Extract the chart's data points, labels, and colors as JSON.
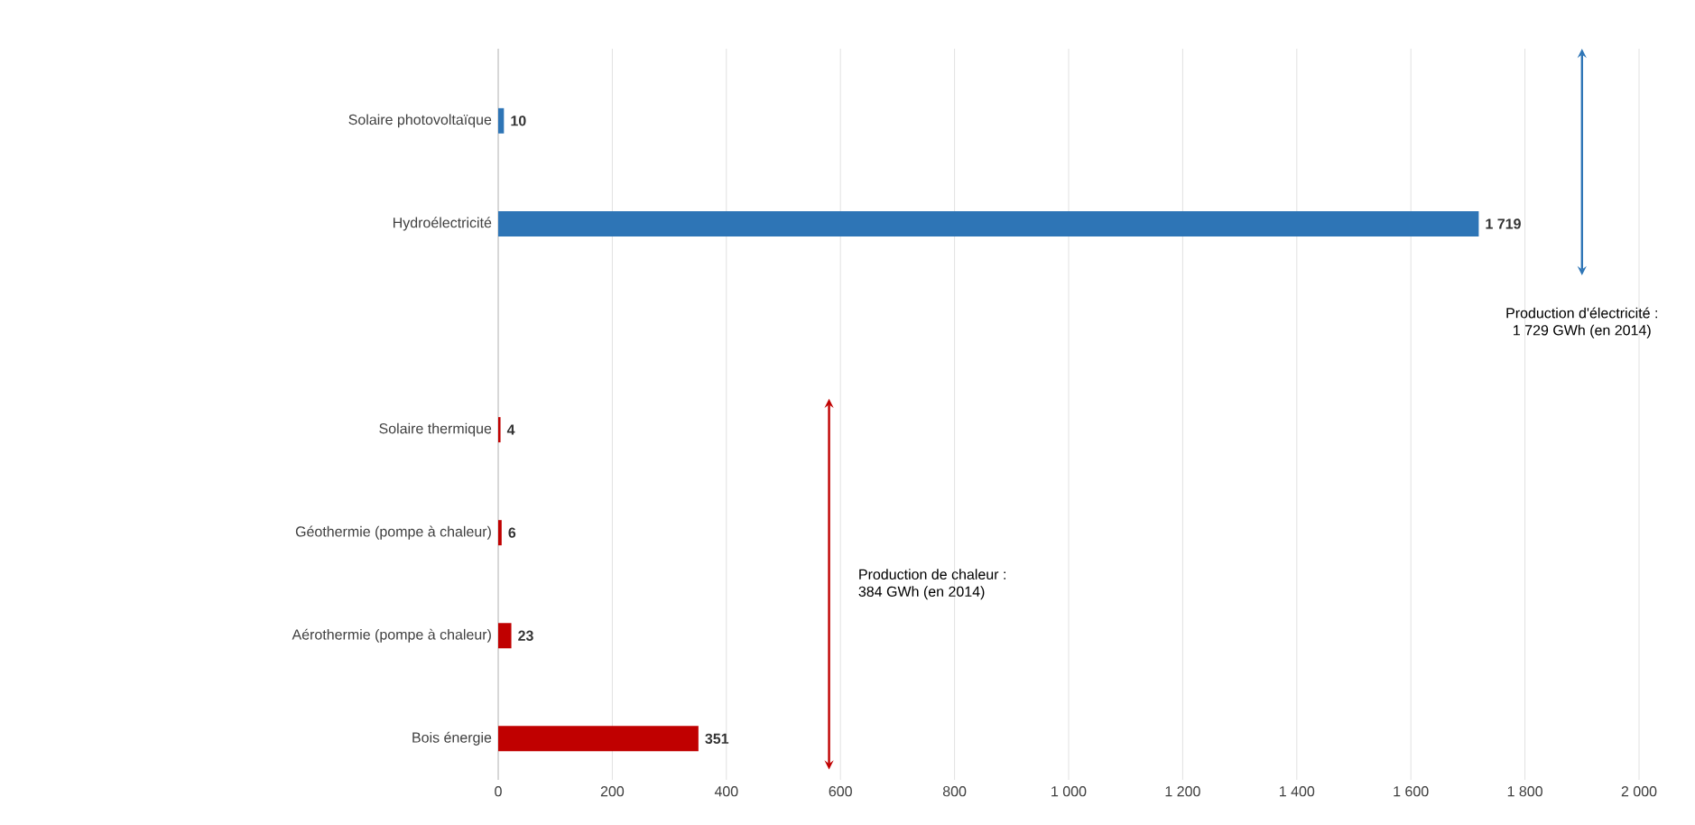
{
  "chart_data": {
    "type": "bar",
    "orientation": "horizontal",
    "categories": [
      "Solaire photovoltaïque",
      "Hydroélectricité",
      null,
      "Solaire thermique",
      "Géothermie (pompe à chaleur)",
      "Aérothermie (pompe à chaleur)",
      "Bois énergie"
    ],
    "values": [
      10,
      1719,
      null,
      4,
      6,
      23,
      351
    ],
    "colors": [
      "#2e75b6",
      "#2e75b6",
      "#2e75b6",
      "#c00000",
      "#c00000",
      "#c00000",
      "#c00000"
    ],
    "value_labels": [
      "10",
      "1 719",
      null,
      "4",
      "6",
      "23",
      "351"
    ],
    "xlim": [
      0,
      2000
    ],
    "xticks": [
      0,
      200,
      400,
      600,
      800,
      {
        "value": 1000,
        "label": "1 000"
      },
      {
        "value": 1200,
        "label": "1 200"
      },
      {
        "value": 1400,
        "label": "1 400"
      },
      {
        "value": 1600,
        "label": "1 600"
      },
      {
        "value": 1800,
        "label": "1 800"
      },
      {
        "value": 2000,
        "label": "2 000"
      }
    ],
    "grid": "x",
    "annotations": [
      "Production d'électricité :\n1 729 GWh (en 2014)",
      "Production de chaleur :\n384 GWh (en 2014)"
    ]
  }
}
